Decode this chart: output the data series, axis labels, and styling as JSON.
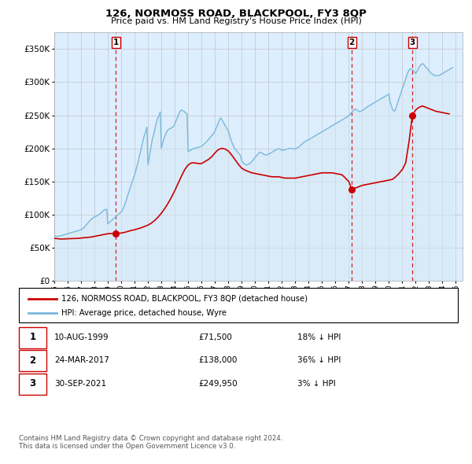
{
  "title": "126, NORMOSS ROAD, BLACKPOOL, FY3 8QP",
  "subtitle": "Price paid vs. HM Land Registry's House Price Index (HPI)",
  "ytick_values": [
    0,
    50000,
    100000,
    150000,
    200000,
    250000,
    300000,
    350000
  ],
  "ylim": [
    0,
    375000
  ],
  "xlim_start": 1995.0,
  "xlim_end": 2025.5,
  "legend_line1": "126, NORMOSS ROAD, BLACKPOOL, FY3 8QP (detached house)",
  "legend_line2": "HPI: Average price, detached house, Wyre",
  "transactions": [
    {
      "num": 1,
      "date": "10-AUG-1999",
      "price": 71500,
      "pct": "18%",
      "dir": "↓",
      "year": 1999.6
    },
    {
      "num": 2,
      "date": "24-MAR-2017",
      "price": 138000,
      "pct": "36%",
      "dir": "↓",
      "year": 2017.22
    },
    {
      "num": 3,
      "date": "30-SEP-2021",
      "price": 249950,
      "pct": "3%",
      "dir": "↓",
      "year": 2021.75
    }
  ],
  "footer_line1": "Contains HM Land Registry data © Crown copyright and database right 2024.",
  "footer_line2": "This data is licensed under the Open Government Licence v3.0.",
  "hpi_color": "#7ab8d9",
  "hpi_fill_color": "#d6eaf5",
  "price_color": "#cc0000",
  "marker_color": "#cc0000",
  "grid_color": "#bbbbbb",
  "chart_bg_color": "#ddeeff",
  "background_color": "#ffffff",
  "hpi_data_x": [
    1995.0,
    1995.083,
    1995.167,
    1995.25,
    1995.333,
    1995.417,
    1995.5,
    1995.583,
    1995.667,
    1995.75,
    1995.833,
    1995.917,
    1996.0,
    1996.083,
    1996.167,
    1996.25,
    1996.333,
    1996.417,
    1996.5,
    1996.583,
    1996.667,
    1996.75,
    1996.833,
    1996.917,
    1997.0,
    1997.083,
    1997.167,
    1997.25,
    1997.333,
    1997.417,
    1997.5,
    1997.583,
    1997.667,
    1997.75,
    1997.833,
    1997.917,
    1998.0,
    1998.083,
    1998.167,
    1998.25,
    1998.333,
    1998.417,
    1998.5,
    1998.583,
    1998.667,
    1998.75,
    1998.833,
    1998.917,
    1999.0,
    1999.083,
    1999.167,
    1999.25,
    1999.333,
    1999.417,
    1999.5,
    1999.583,
    1999.667,
    1999.75,
    1999.833,
    1999.917,
    2000.0,
    2000.083,
    2000.167,
    2000.25,
    2000.333,
    2000.417,
    2000.5,
    2000.583,
    2000.667,
    2000.75,
    2000.833,
    2000.917,
    2001.0,
    2001.083,
    2001.167,
    2001.25,
    2001.333,
    2001.417,
    2001.5,
    2001.583,
    2001.667,
    2001.75,
    2001.833,
    2001.917,
    2002.0,
    2002.083,
    2002.167,
    2002.25,
    2002.333,
    2002.417,
    2002.5,
    2002.583,
    2002.667,
    2002.75,
    2002.833,
    2002.917,
    2003.0,
    2003.083,
    2003.167,
    2003.25,
    2003.333,
    2003.417,
    2003.5,
    2003.583,
    2003.667,
    2003.75,
    2003.833,
    2003.917,
    2004.0,
    2004.083,
    2004.167,
    2004.25,
    2004.333,
    2004.417,
    2004.5,
    2004.583,
    2004.667,
    2004.75,
    2004.833,
    2004.917,
    2005.0,
    2005.083,
    2005.167,
    2005.25,
    2005.333,
    2005.417,
    2005.5,
    2005.583,
    2005.667,
    2005.75,
    2005.833,
    2005.917,
    2006.0,
    2006.083,
    2006.167,
    2006.25,
    2006.333,
    2006.417,
    2006.5,
    2006.583,
    2006.667,
    2006.75,
    2006.833,
    2006.917,
    2007.0,
    2007.083,
    2007.167,
    2007.25,
    2007.333,
    2007.417,
    2007.5,
    2007.583,
    2007.667,
    2007.75,
    2007.833,
    2007.917,
    2008.0,
    2008.083,
    2008.167,
    2008.25,
    2008.333,
    2008.417,
    2008.5,
    2008.583,
    2008.667,
    2008.75,
    2008.833,
    2008.917,
    2009.0,
    2009.083,
    2009.167,
    2009.25,
    2009.333,
    2009.417,
    2009.5,
    2009.583,
    2009.667,
    2009.75,
    2009.833,
    2009.917,
    2010.0,
    2010.083,
    2010.167,
    2010.25,
    2010.333,
    2010.417,
    2010.5,
    2010.583,
    2010.667,
    2010.75,
    2010.833,
    2010.917,
    2011.0,
    2011.083,
    2011.167,
    2011.25,
    2011.333,
    2011.417,
    2011.5,
    2011.583,
    2011.667,
    2011.75,
    2011.833,
    2011.917,
    2012.0,
    2012.083,
    2012.167,
    2012.25,
    2012.333,
    2012.417,
    2012.5,
    2012.583,
    2012.667,
    2012.75,
    2012.833,
    2012.917,
    2013.0,
    2013.083,
    2013.167,
    2013.25,
    2013.333,
    2013.417,
    2013.5,
    2013.583,
    2013.667,
    2013.75,
    2013.833,
    2013.917,
    2014.0,
    2014.083,
    2014.167,
    2014.25,
    2014.333,
    2014.417,
    2014.5,
    2014.583,
    2014.667,
    2014.75,
    2014.833,
    2014.917,
    2015.0,
    2015.083,
    2015.167,
    2015.25,
    2015.333,
    2015.417,
    2015.5,
    2015.583,
    2015.667,
    2015.75,
    2015.833,
    2015.917,
    2016.0,
    2016.083,
    2016.167,
    2016.25,
    2016.333,
    2016.417,
    2016.5,
    2016.583,
    2016.667,
    2016.75,
    2016.833,
    2016.917,
    2017.0,
    2017.083,
    2017.167,
    2017.25,
    2017.333,
    2017.417,
    2017.5,
    2017.583,
    2017.667,
    2017.75,
    2017.833,
    2017.917,
    2018.0,
    2018.083,
    2018.167,
    2018.25,
    2018.333,
    2018.417,
    2018.5,
    2018.583,
    2018.667,
    2018.75,
    2018.833,
    2018.917,
    2019.0,
    2019.083,
    2019.167,
    2019.25,
    2019.333,
    2019.417,
    2019.5,
    2019.583,
    2019.667,
    2019.75,
    2019.833,
    2019.917,
    2020.0,
    2020.083,
    2020.167,
    2020.25,
    2020.333,
    2020.417,
    2020.5,
    2020.583,
    2020.667,
    2020.75,
    2020.833,
    2020.917,
    2021.0,
    2021.083,
    2021.167,
    2021.25,
    2021.333,
    2021.417,
    2021.5,
    2021.583,
    2021.667,
    2021.75,
    2021.833,
    2021.917,
    2022.0,
    2022.083,
    2022.167,
    2022.25,
    2022.333,
    2022.417,
    2022.5,
    2022.583,
    2022.667,
    2022.75,
    2022.833,
    2022.917,
    2023.0,
    2023.083,
    2023.167,
    2023.25,
    2023.333,
    2023.417,
    2023.5,
    2023.583,
    2023.667,
    2023.75,
    2023.833,
    2023.917,
    2024.0,
    2024.083,
    2024.167,
    2024.25,
    2024.333,
    2024.417,
    2024.5,
    2024.583,
    2024.667,
    2024.75
  ],
  "hpi_data_y": [
    68000,
    67500,
    67200,
    67000,
    67200,
    67500,
    68000,
    68500,
    69000,
    69500,
    70000,
    70500,
    71000,
    71500,
    72000,
    72500,
    73000,
    73500,
    74000,
    74500,
    75000,
    75500,
    76000,
    76500,
    77000,
    78000,
    79500,
    81000,
    83000,
    85000,
    87000,
    89000,
    91000,
    92500,
    94000,
    95500,
    96000,
    97000,
    98000,
    99000,
    100000,
    101500,
    103000,
    104500,
    106000,
    107000,
    107500,
    108000,
    86000,
    87500,
    89000,
    90500,
    92000,
    93500,
    95000,
    96500,
    98000,
    99500,
    101000,
    102500,
    104000,
    107000,
    110000,
    114000,
    119000,
    124000,
    130000,
    135000,
    140000,
    145000,
    150000,
    155000,
    160000,
    166000,
    172000,
    179000,
    186000,
    193000,
    200000,
    208000,
    215000,
    221000,
    226000,
    232000,
    175000,
    185000,
    195000,
    205000,
    215000,
    220000,
    228000,
    235000,
    242000,
    247000,
    250000,
    255000,
    200000,
    207000,
    213000,
    218000,
    222000,
    226000,
    228000,
    229000,
    230000,
    231000,
    232000,
    233000,
    237000,
    241000,
    245000,
    249000,
    253000,
    257000,
    258000,
    257000,
    256000,
    255000,
    253000,
    252000,
    195000,
    196000,
    197000,
    198000,
    199000,
    200000,
    200000,
    200500,
    201000,
    201500,
    202000,
    202500,
    203000,
    204500,
    206000,
    207500,
    209000,
    211000,
    213000,
    215000,
    217000,
    219000,
    221000,
    222500,
    226000,
    230000,
    234000,
    238000,
    243000,
    246000,
    244000,
    241000,
    238000,
    235000,
    232000,
    229000,
    227000,
    221000,
    215000,
    210000,
    206000,
    202000,
    199000,
    197000,
    195000,
    193000,
    191000,
    189000,
    181000,
    179000,
    177000,
    176000,
    175000,
    175000,
    176000,
    177000,
    178000,
    180000,
    182000,
    184000,
    186000,
    188000,
    190000,
    192000,
    194000,
    194000,
    193000,
    192000,
    191000,
    190000,
    190000,
    190500,
    191000,
    192000,
    193000,
    194000,
    195000,
    196000,
    197000,
    198000,
    199000,
    199500,
    199000,
    198500,
    197000,
    197000,
    197500,
    198000,
    198500,
    199000,
    199500,
    200000,
    200000,
    200000,
    199500,
    199000,
    199000,
    200000,
    201000,
    202000,
    203500,
    205000,
    206500,
    208000,
    209500,
    210500,
    211500,
    212500,
    213000,
    214000,
    215000,
    216000,
    217000,
    218000,
    219000,
    220000,
    221000,
    222000,
    223000,
    224000,
    225000,
    226000,
    227000,
    228000,
    229000,
    230000,
    231000,
    232000,
    233000,
    234000,
    235000,
    236000,
    237000,
    238000,
    239000,
    240000,
    241000,
    242000,
    243000,
    244000,
    245000,
    246000,
    247000,
    248000,
    249000,
    251000,
    253000,
    255000,
    257000,
    259000,
    259000,
    258000,
    257000,
    256000,
    255500,
    256000,
    257000,
    258000,
    259000,
    260500,
    262000,
    263000,
    264000,
    265000,
    266000,
    267000,
    268000,
    269000,
    270000,
    271000,
    272000,
    273000,
    274000,
    275000,
    276000,
    277000,
    278000,
    279000,
    280000,
    281000,
    282000,
    270000,
    265000,
    260000,
    257000,
    256000,
    259000,
    264000,
    270000,
    275000,
    280000,
    285000,
    290000,
    295000,
    300000,
    305000,
    310000,
    315000,
    318000,
    320000,
    320000,
    319000,
    317000,
    315000,
    313000,
    316000,
    319000,
    322000,
    325000,
    327000,
    328000,
    327000,
    325000,
    323000,
    321000,
    319000,
    317000,
    315000,
    313000,
    312000,
    311000,
    310000,
    310000,
    310000,
    310000,
    310000,
    311000,
    312000,
    313000,
    314000,
    315000,
    316000,
    317000,
    318000,
    319000,
    320000,
    321000,
    322000
  ],
  "price_data_x": [
    1995.0,
    1995.25,
    1995.5,
    1995.75,
    1996.0,
    1996.25,
    1996.5,
    1996.75,
    1997.0,
    1997.25,
    1997.5,
    1997.75,
    1998.0,
    1998.25,
    1998.5,
    1998.75,
    1999.0,
    1999.25,
    1999.5,
    1999.6,
    2000.0,
    2000.25,
    2000.5,
    2000.75,
    2001.0,
    2001.25,
    2001.5,
    2001.75,
    2002.0,
    2002.25,
    2002.5,
    2002.75,
    2003.0,
    2003.25,
    2003.5,
    2003.75,
    2004.0,
    2004.25,
    2004.5,
    2004.75,
    2005.0,
    2005.25,
    2005.5,
    2005.75,
    2006.0,
    2006.25,
    2006.5,
    2006.75,
    2007.0,
    2007.25,
    2007.5,
    2007.75,
    2008.0,
    2008.25,
    2008.5,
    2008.75,
    2009.0,
    2009.25,
    2009.5,
    2009.75,
    2010.0,
    2010.25,
    2010.5,
    2010.75,
    2011.0,
    2011.25,
    2011.5,
    2011.75,
    2012.0,
    2012.25,
    2012.5,
    2012.75,
    2013.0,
    2013.25,
    2013.5,
    2013.75,
    2014.0,
    2014.25,
    2014.5,
    2014.75,
    2015.0,
    2015.25,
    2015.5,
    2015.75,
    2016.0,
    2016.25,
    2016.5,
    2016.75,
    2017.0,
    2017.22,
    2017.5,
    2017.75,
    2018.0,
    2018.25,
    2018.5,
    2018.75,
    2019.0,
    2019.25,
    2019.5,
    2019.75,
    2020.0,
    2020.25,
    2020.5,
    2020.75,
    2021.0,
    2021.25,
    2021.5,
    2021.75,
    2022.0,
    2022.25,
    2022.5,
    2022.75,
    2023.0,
    2023.25,
    2023.5,
    2023.75,
    2024.0,
    2024.25,
    2024.5
  ],
  "price_data_y": [
    64000,
    63500,
    63000,
    63200,
    63400,
    63600,
    63800,
    64000,
    64500,
    65000,
    65500,
    66000,
    67000,
    68000,
    69000,
    70000,
    71000,
    71300,
    71500,
    71500,
    72000,
    73000,
    74500,
    76000,
    77000,
    78500,
    80000,
    82000,
    84000,
    87000,
    91000,
    96000,
    102000,
    109000,
    117000,
    126000,
    136000,
    147000,
    158000,
    168000,
    175000,
    178000,
    178000,
    177000,
    177000,
    180000,
    183000,
    187000,
    193000,
    198000,
    200000,
    199000,
    196000,
    190000,
    183000,
    176000,
    170000,
    167000,
    165000,
    163000,
    162000,
    161000,
    160000,
    159000,
    158000,
    157000,
    157000,
    157000,
    156000,
    155000,
    155000,
    155000,
    155000,
    156000,
    157000,
    158000,
    159000,
    160000,
    161000,
    162000,
    163000,
    163000,
    163000,
    163000,
    162000,
    161000,
    160000,
    155000,
    150000,
    138000,
    140000,
    142000,
    144000,
    145000,
    146000,
    147000,
    148000,
    149000,
    150000,
    151000,
    152000,
    153000,
    157000,
    162000,
    168000,
    178000,
    210000,
    249950,
    258000,
    262000,
    264000,
    262000,
    260000,
    258000,
    256000,
    255000,
    254000,
    253000,
    252000
  ]
}
